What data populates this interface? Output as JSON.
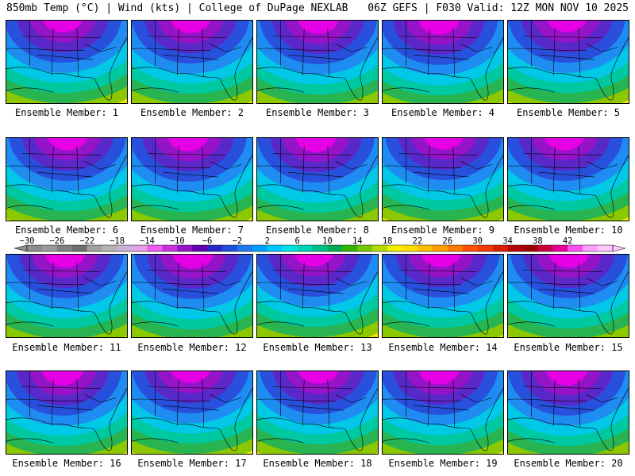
{
  "header": {
    "left_title": "850mb Temp (°C) | Wind (kts) | College of DuPage NEXLAB",
    "right_title": "06Z GEFS | F030 Valid: 12Z MON NOV 10 2025"
  },
  "panel_label_prefix": "Ensemble Member:",
  "members": [
    {
      "label": "Ensemble Member: 1",
      "number": 1
    },
    {
      "label": "Ensemble Member: 2",
      "number": 2
    },
    {
      "label": "Ensemble Member: 3",
      "number": 3
    },
    {
      "label": "Ensemble Member: 4",
      "number": 4
    },
    {
      "label": "Ensemble Member: 5",
      "number": 5
    },
    {
      "label": "Ensemble Member: 6",
      "number": 6
    },
    {
      "label": "Ensemble Member: 7",
      "number": 7
    },
    {
      "label": "Ensemble Member: 8",
      "number": 8
    },
    {
      "label": "Ensemble Member: 9",
      "number": 9
    },
    {
      "label": "Ensemble Member: 10",
      "number": 10
    },
    {
      "label": "Ensemble Member: 11",
      "number": 11
    },
    {
      "label": "Ensemble Member: 12",
      "number": 12
    },
    {
      "label": "Ensemble Member: 13",
      "number": 13
    },
    {
      "label": "Ensemble Member: 14",
      "number": 14
    },
    {
      "label": "Ensemble Member: 15",
      "number": 15
    },
    {
      "label": "Ensemble Member: 16",
      "number": 16
    },
    {
      "label": "Ensemble Member: 17",
      "number": 17
    },
    {
      "label": "Ensemble Member: 18",
      "number": 18
    },
    {
      "label": "Ensemble Member: 19",
      "number": 19
    },
    {
      "label": "Ensemble Member: 20",
      "number": 20
    }
  ],
  "colorbar": {
    "tick_labels": [
      "−30",
      "−26",
      "−22",
      "−18",
      "−14",
      "−10",
      "−6",
      "−2",
      "2",
      "6",
      "10",
      "14",
      "18",
      "22",
      "26",
      "30",
      "34",
      "38",
      "42"
    ],
    "colors": [
      "#8c8c8c",
      "#9a9a9a",
      "#808080",
      "#6e6e6e",
      "#a0a0a0",
      "#b4b4b4",
      "#c8b4d2",
      "#e6a0e6",
      "#f05af0",
      "#c832dc",
      "#9614c8",
      "#6400b4",
      "#2828c8",
      "#1e50dc",
      "#1e78f0",
      "#00a0ff",
      "#00c8ff",
      "#00e1e1",
      "#00d2b4",
      "#00be8c",
      "#00aa50",
      "#32b400",
      "#78c800",
      "#b4dc00",
      "#f0f000",
      "#ffdc00",
      "#ffbe00",
      "#ffa000",
      "#ff7800",
      "#ff5000",
      "#f03c00",
      "#dc1e00",
      "#b40000",
      "#a00000",
      "#c8003c",
      "#e6009b",
      "#ff50f0",
      "#ffa0ff",
      "#ffc8ff"
    ]
  },
  "temperature_palette": {
    "magenta": "#e600e6",
    "purple": "#9614c8",
    "indigo": "#5a28c8",
    "blue": "#2850dc",
    "azure": "#1e8cf0",
    "cyan": "#00c8e6",
    "teal": "#00c8a0",
    "green": "#28b450",
    "lime": "#8cc800",
    "yellow": "#f0e600",
    "gold": "#fad200"
  }
}
